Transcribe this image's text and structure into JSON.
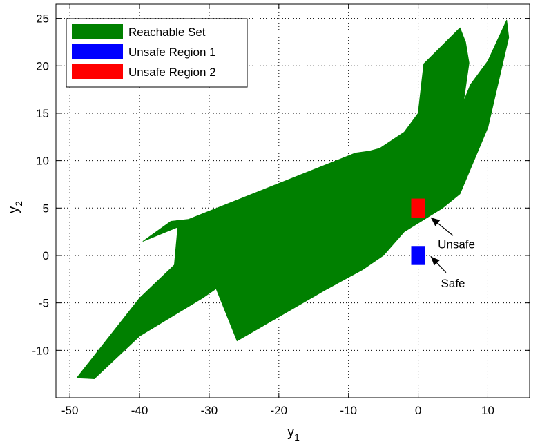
{
  "chart_data": {
    "type": "area",
    "xlabel": "y",
    "xlabel_sub": "1",
    "ylabel": "y",
    "ylabel_sub": "2",
    "xlim": [
      -52,
      16
    ],
    "ylim": [
      -15,
      26.5
    ],
    "xticks": [
      -50,
      -40,
      -30,
      -20,
      -10,
      0,
      10
    ],
    "yticks": [
      -10,
      -5,
      0,
      5,
      10,
      15,
      20,
      25
    ],
    "grid": true,
    "legend_position": "top-left",
    "series": [
      {
        "name": "Reachable Set",
        "kind": "polygon",
        "color": "#008000",
        "points": [
          [
            -49,
            -12.9
          ],
          [
            -46.5,
            -13.0
          ],
          [
            -40,
            -8.5
          ],
          [
            -31,
            -4.5
          ],
          [
            -29,
            -3.5
          ],
          [
            -26,
            -9.0
          ],
          [
            -13,
            -3.5
          ],
          [
            -8,
            -1.5
          ],
          [
            -5,
            0
          ],
          [
            -2,
            2.5
          ],
          [
            3.5,
            5.0
          ],
          [
            6,
            6.5
          ],
          [
            10,
            13.5
          ],
          [
            13,
            23
          ],
          [
            12.7,
            24.8
          ],
          [
            10,
            20.5
          ],
          [
            7.5,
            18.0
          ],
          [
            6.5,
            16.2
          ],
          [
            7.3,
            20.3
          ],
          [
            6.8,
            22.5
          ],
          [
            6.0,
            24.0
          ],
          [
            0.8,
            20.2
          ],
          [
            0,
            15
          ],
          [
            -2,
            13
          ],
          [
            -5.5,
            11.3
          ],
          [
            -7,
            11.0
          ],
          [
            -9,
            10.8
          ],
          [
            -33,
            3.8
          ],
          [
            -35.5,
            3.6
          ],
          [
            -39.5,
            1.5
          ],
          [
            -34.5,
            3.0
          ],
          [
            -35,
            -1.0
          ],
          [
            -40,
            -4.5
          ]
        ]
      },
      {
        "name": "Unsafe Region 1",
        "kind": "rect",
        "color": "#0000ff",
        "x": [
          -1,
          1
        ],
        "y": [
          -1,
          1
        ]
      },
      {
        "name": "Unsafe Region 2",
        "kind": "rect",
        "color": "#ff0000",
        "x": [
          -1,
          1
        ],
        "y": [
          4,
          6
        ]
      }
    ],
    "annotations": [
      {
        "text": "Unsafe",
        "text_at": [
          5.5,
          1.2
        ],
        "arrow_from": [
          5.0,
          2.1
        ],
        "arrow_to": [
          1.8,
          4.0
        ]
      },
      {
        "text": "Safe",
        "text_at": [
          5.0,
          -2.9
        ],
        "arrow_from": [
          4.0,
          -1.8
        ],
        "arrow_to": [
          1.8,
          -0.1
        ]
      }
    ]
  }
}
